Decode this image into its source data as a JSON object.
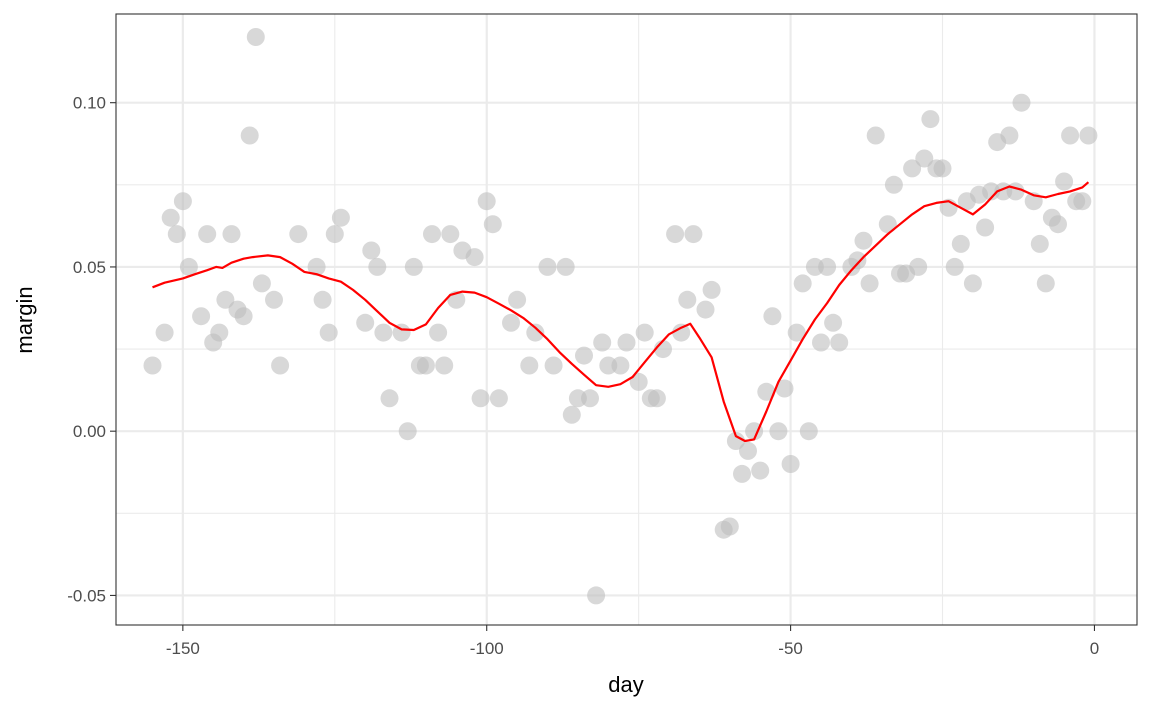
{
  "chart_data": {
    "type": "scatter",
    "xlabel": "day",
    "ylabel": "margin",
    "xlim": [
      -161,
      7
    ],
    "ylim": [
      -0.059,
      0.127
    ],
    "x_ticks": [
      -150,
      -100,
      -50,
      0
    ],
    "x_tick_labels": [
      "-150",
      "-100",
      "-50",
      "0"
    ],
    "x_minor_ticks": [
      -125,
      -75,
      -25
    ],
    "y_ticks": [
      -0.05,
      0.0,
      0.05,
      0.1
    ],
    "y_tick_labels": [
      "-0.05",
      "0.00",
      "0.05",
      "0.10"
    ],
    "y_minor_ticks": [
      -0.025,
      0.025,
      0.075
    ],
    "grid": true,
    "colors": {
      "points": "#bebebe",
      "smooth_line": "#ff0000",
      "grid": "#ebebeb",
      "panel_border": "#333333"
    },
    "series": [
      {
        "kind": "points",
        "points": [
          [
            -155,
            0.02
          ],
          [
            -153,
            0.03
          ],
          [
            -152,
            0.065
          ],
          [
            -151,
            0.06
          ],
          [
            -150,
            0.07
          ],
          [
            -149,
            0.05
          ],
          [
            -147,
            0.035
          ],
          [
            -146,
            0.06
          ],
          [
            -145,
            0.027
          ],
          [
            -144,
            0.03
          ],
          [
            -143,
            0.04
          ],
          [
            -142,
            0.06
          ],
          [
            -141,
            0.037
          ],
          [
            -140,
            0.035
          ],
          [
            -139,
            0.09
          ],
          [
            -138,
            0.12
          ],
          [
            -137,
            0.045
          ],
          [
            -135,
            0.04
          ],
          [
            -134,
            0.02
          ],
          [
            -131,
            0.06
          ],
          [
            -128,
            0.05
          ],
          [
            -127,
            0.04
          ],
          [
            -126,
            0.03
          ],
          [
            -125,
            0.06
          ],
          [
            -124,
            0.065
          ],
          [
            -120,
            0.033
          ],
          [
            -119,
            0.055
          ],
          [
            -118,
            0.05
          ],
          [
            -117,
            0.03
          ],
          [
            -116,
            0.01
          ],
          [
            -114,
            0.03
          ],
          [
            -113,
            0.0
          ],
          [
            -112,
            0.05
          ],
          [
            -111,
            0.02
          ],
          [
            -110,
            0.02
          ],
          [
            -109,
            0.06
          ],
          [
            -108,
            0.03
          ],
          [
            -107,
            0.02
          ],
          [
            -106,
            0.06
          ],
          [
            -105,
            0.04
          ],
          [
            -104,
            0.055
          ],
          [
            -102,
            0.053
          ],
          [
            -101,
            0.01
          ],
          [
            -100,
            0.07
          ],
          [
            -99,
            0.063
          ],
          [
            -98,
            0.01
          ],
          [
            -96,
            0.033
          ],
          [
            -95,
            0.04
          ],
          [
            -93,
            0.02
          ],
          [
            -92,
            0.03
          ],
          [
            -90,
            0.05
          ],
          [
            -89,
            0.02
          ],
          [
            -87,
            0.05
          ],
          [
            -86,
            0.005
          ],
          [
            -85,
            0.01
          ],
          [
            -84,
            0.023
          ],
          [
            -83,
            0.01
          ],
          [
            -82,
            -0.05
          ],
          [
            -81,
            0.027
          ],
          [
            -80,
            0.02
          ],
          [
            -78,
            0.02
          ],
          [
            -77,
            0.027
          ],
          [
            -75,
            0.015
          ],
          [
            -74,
            0.03
          ],
          [
            -73,
            0.01
          ],
          [
            -72,
            0.01
          ],
          [
            -71,
            0.025
          ],
          [
            -69,
            0.06
          ],
          [
            -68,
            0.03
          ],
          [
            -67,
            0.04
          ],
          [
            -66,
            0.06
          ],
          [
            -64,
            0.037
          ],
          [
            -63,
            0.043
          ],
          [
            -61,
            -0.03
          ],
          [
            -60,
            -0.029
          ],
          [
            -59,
            -0.003
          ],
          [
            -58,
            -0.013
          ],
          [
            -57,
            -0.006
          ],
          [
            -56,
            0.0
          ],
          [
            -55,
            -0.012
          ],
          [
            -54,
            0.012
          ],
          [
            -53,
            0.035
          ],
          [
            -52,
            0.0
          ],
          [
            -51,
            0.013
          ],
          [
            -50,
            -0.01
          ],
          [
            -49,
            0.03
          ],
          [
            -48,
            0.045
          ],
          [
            -47,
            0.0
          ],
          [
            -46,
            0.05
          ],
          [
            -45,
            0.027
          ],
          [
            -44,
            0.05
          ],
          [
            -43,
            0.033
          ],
          [
            -42,
            0.027
          ],
          [
            -40,
            0.05
          ],
          [
            -39,
            0.052
          ],
          [
            -38,
            0.058
          ],
          [
            -37,
            0.045
          ],
          [
            -36,
            0.09
          ],
          [
            -34,
            0.063
          ],
          [
            -33,
            0.075
          ],
          [
            -32,
            0.048
          ],
          [
            -31,
            0.048
          ],
          [
            -30,
            0.08
          ],
          [
            -29,
            0.05
          ],
          [
            -28,
            0.083
          ],
          [
            -27,
            0.095
          ],
          [
            -26,
            0.08
          ],
          [
            -25,
            0.08
          ],
          [
            -24,
            0.068
          ],
          [
            -23,
            0.05
          ],
          [
            -22,
            0.057
          ],
          [
            -21,
            0.07
          ],
          [
            -20,
            0.045
          ],
          [
            -19,
            0.072
          ],
          [
            -18,
            0.062
          ],
          [
            -17,
            0.073
          ],
          [
            -16,
            0.088
          ],
          [
            -15,
            0.073
          ],
          [
            -14,
            0.09
          ],
          [
            -13,
            0.073
          ],
          [
            -12,
            0.1
          ],
          [
            -10,
            0.07
          ],
          [
            -9,
            0.057
          ],
          [
            -8,
            0.045
          ],
          [
            -7,
            0.065
          ],
          [
            -6,
            0.063
          ],
          [
            -5,
            0.076
          ],
          [
            -4,
            0.09
          ],
          [
            -3,
            0.07
          ],
          [
            -2,
            0.07
          ],
          [
            -1,
            0.09
          ]
        ]
      },
      {
        "kind": "smooth_line",
        "points": [
          [
            -155,
            0.0438
          ],
          [
            -153,
            0.0452
          ],
          [
            -150,
            0.0465
          ],
          [
            -148,
            0.0478
          ],
          [
            -146,
            0.049
          ],
          [
            -144.5,
            0.05
          ],
          [
            -143.5,
            0.0497
          ],
          [
            -142,
            0.0513
          ],
          [
            -140,
            0.0525
          ],
          [
            -138.5,
            0.053
          ],
          [
            -136,
            0.0535
          ],
          [
            -134,
            0.053
          ],
          [
            -132,
            0.051
          ],
          [
            -130,
            0.0485
          ],
          [
            -128,
            0.0478
          ],
          [
            -126,
            0.0465
          ],
          [
            -124,
            0.0455
          ],
          [
            -122,
            0.043
          ],
          [
            -120,
            0.04
          ],
          [
            -118,
            0.0365
          ],
          [
            -116,
            0.033
          ],
          [
            -114,
            0.031
          ],
          [
            -112,
            0.0308
          ],
          [
            -110,
            0.0325
          ],
          [
            -108,
            0.0375
          ],
          [
            -106,
            0.0415
          ],
          [
            -104,
            0.0425
          ],
          [
            -102,
            0.0422
          ],
          [
            -100,
            0.0408
          ],
          [
            -98,
            0.0388
          ],
          [
            -96,
            0.0368
          ],
          [
            -94,
            0.0345
          ],
          [
            -92,
            0.0315
          ],
          [
            -90,
            0.028
          ],
          [
            -88,
            0.024
          ],
          [
            -86,
            0.0205
          ],
          [
            -84,
            0.0172
          ],
          [
            -82,
            0.014
          ],
          [
            -80,
            0.0135
          ],
          [
            -78,
            0.0143
          ],
          [
            -76,
            0.0165
          ],
          [
            -74,
            0.021
          ],
          [
            -72,
            0.0255
          ],
          [
            -70,
            0.0295
          ],
          [
            -68,
            0.0315
          ],
          [
            -66.5,
            0.0327
          ],
          [
            -65,
            0.0285
          ],
          [
            -63,
            0.0225
          ],
          [
            -61,
            0.009
          ],
          [
            -59,
            -0.0015
          ],
          [
            -57.5,
            -0.003
          ],
          [
            -56,
            -0.0025
          ],
          [
            -54,
            0.006
          ],
          [
            -52,
            0.015
          ],
          [
            -50,
            0.0215
          ],
          [
            -48,
            0.028
          ],
          [
            -46,
            0.034
          ],
          [
            -44,
            0.039
          ],
          [
            -42,
            0.0445
          ],
          [
            -40,
            0.049
          ],
          [
            -38,
            0.053
          ],
          [
            -36,
            0.0565
          ],
          [
            -34,
            0.06
          ],
          [
            -32,
            0.063
          ],
          [
            -30,
            0.066
          ],
          [
            -28,
            0.0685
          ],
          [
            -26,
            0.0695
          ],
          [
            -24,
            0.07
          ],
          [
            -22,
            0.068
          ],
          [
            -20,
            0.066
          ],
          [
            -18,
            0.069
          ],
          [
            -16,
            0.073
          ],
          [
            -14,
            0.0745
          ],
          [
            -12,
            0.0735
          ],
          [
            -10,
            0.0718
          ],
          [
            -8,
            0.0712
          ],
          [
            -6,
            0.0722
          ],
          [
            -4,
            0.073
          ],
          [
            -2,
            0.0742
          ],
          [
            -1,
            0.0758
          ]
        ]
      }
    ]
  }
}
